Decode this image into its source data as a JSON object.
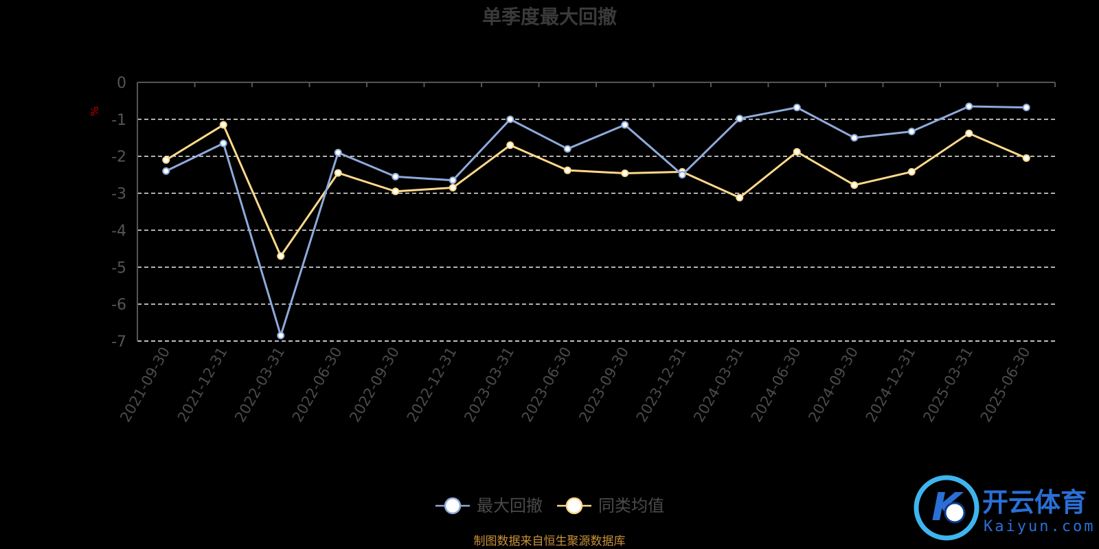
{
  "chart_data": {
    "type": "line",
    "title": "单季度最大回撤",
    "unit_label": "%",
    "categories": [
      "2021-09-30",
      "2021-12-31",
      "2022-03-31",
      "2022-06-30",
      "2022-09-30",
      "2022-12-31",
      "2023-03-31",
      "2023-06-30",
      "2023-09-30",
      "2023-12-31",
      "2024-03-31",
      "2024-06-30",
      "2024-09-30",
      "2024-12-31",
      "2025-03-31",
      "2025-06-30"
    ],
    "ylim": [
      -7,
      0
    ],
    "yticks": [
      "0",
      "-1",
      "-2",
      "-3",
      "-4",
      "-5",
      "-6",
      "-7"
    ],
    "grid": true,
    "legend_position": "bottom",
    "series": [
      {
        "name": "最大回撤",
        "color": "#8eaadb",
        "values": [
          -2.4,
          -1.65,
          -6.85,
          -1.9,
          -2.55,
          -2.65,
          -1.0,
          -1.8,
          -1.15,
          -2.5,
          -0.98,
          -0.68,
          -1.5,
          -1.33,
          -0.65,
          -0.68
        ]
      },
      {
        "name": "同类均值",
        "color": "#ffd98a",
        "values": [
          -2.1,
          -1.15,
          -4.7,
          -2.45,
          -2.95,
          -2.85,
          -1.7,
          -2.38,
          -2.46,
          -2.42,
          -3.12,
          -1.88,
          -2.78,
          -2.42,
          -1.38,
          -2.05
        ]
      }
    ]
  },
  "source_note": "制图数据来自恒生聚源数据库",
  "watermark": {
    "brand_cn": "开云体育",
    "brand_en": "Kaiyun.com",
    "badge_letter": "K",
    "colors": {
      "primary": "#2a6fd6",
      "secondary": "#3fb5ef"
    }
  }
}
